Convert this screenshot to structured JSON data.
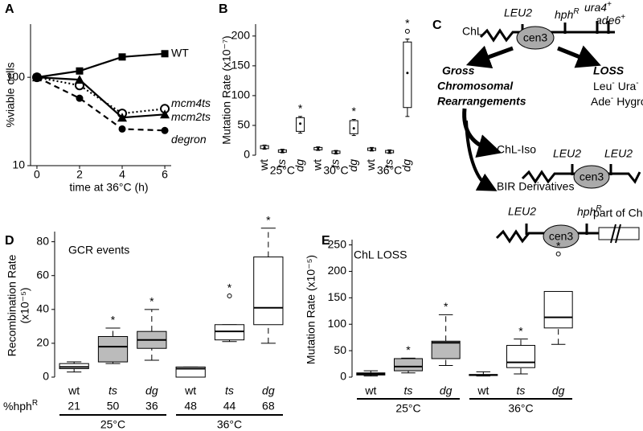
{
  "chart_data": [
    {
      "panel": "A",
      "type": "line",
      "xlabel": "time at 36°C (h)",
      "ylabel": "%viable cells",
      "x": [
        0,
        2,
        4,
        6
      ],
      "xlim": [
        -0.3,
        6.3
      ],
      "xticks": [
        0,
        2,
        4,
        6
      ],
      "ylim": [
        10,
        400
      ],
      "yticks": [
        10,
        100
      ],
      "log_y": true,
      "series": [
        {
          "name": "WT",
          "color": "#000000",
          "values": [
            100,
            118,
            170,
            185
          ],
          "marker": "square",
          "dash": "solid",
          "italic": false
        },
        {
          "name": "mcm4ts",
          "color": "#000000",
          "values": [
            100,
            81,
            39,
            44
          ],
          "marker": "open-circle",
          "dash": "dotted",
          "italic": true
        },
        {
          "name": "mcm2ts",
          "color": "#000000",
          "values": [
            100,
            94,
            35,
            38
          ],
          "marker": "triangle",
          "dash": "solid",
          "italic": true
        },
        {
          "name": "degron",
          "color": "#000000",
          "values": [
            100,
            58,
            26,
            25
          ],
          "marker": "circle",
          "dash": "dashed",
          "italic": true
        }
      ]
    },
    {
      "panel": "B",
      "type": "box",
      "ylabel": "Mutation Rate (x10⁻⁷)",
      "categories": [
        "wt",
        "ts",
        "dg",
        "wt",
        "ts",
        "dg",
        "wt",
        "ts",
        "dg"
      ],
      "category_italic": [
        false,
        true,
        true,
        false,
        true,
        true,
        false,
        true,
        true
      ],
      "groups": [
        "25°C",
        "30°C",
        "36°C"
      ],
      "ylim": [
        0,
        220
      ],
      "yticks": [
        0,
        50,
        100,
        150,
        200
      ],
      "min": [
        10,
        4,
        37,
        8,
        2,
        33,
        7,
        3,
        65
      ],
      "q1": [
        11,
        5,
        40,
        9,
        3,
        36,
        8,
        4,
        80
      ],
      "median": [
        13,
        7,
        53,
        11,
        5,
        45,
        10,
        6,
        138
      ],
      "q3": [
        16,
        9,
        63,
        13,
        7,
        58,
        12,
        8,
        190
      ],
      "max": [
        17,
        10,
        65,
        14,
        8,
        60,
        13,
        9,
        195
      ],
      "outliers": [
        [],
        [],
        [],
        [],
        [],
        [],
        [],
        [],
        [
          208
        ]
      ],
      "significant": [
        false,
        false,
        true,
        false,
        false,
        true,
        false,
        false,
        true
      ],
      "sig_label": "*",
      "box_colors": [
        "#ffffff",
        "#ffffff",
        "#ffffff",
        "#ffffff",
        "#ffffff",
        "#ffffff",
        "#ffffff",
        "#ffffff",
        "#ffffff"
      ],
      "median_style": "dot",
      "whisker_style": "solid",
      "group_lines": false
    },
    {
      "panel": "D",
      "type": "box",
      "title": "GCR events",
      "ylabel": [
        "Recombination Rate",
        "(x10⁻⁵)"
      ],
      "categories": [
        "wt",
        "ts",
        "dg",
        "wt",
        "ts",
        "dg"
      ],
      "category_italic": [
        false,
        true,
        true,
        false,
        true,
        true
      ],
      "groups": [
        "25°C",
        "36°C"
      ],
      "row_label": {
        "text": "%hph",
        "sup": "R"
      },
      "row_values": [
        21,
        50,
        36,
        48,
        44,
        68
      ],
      "ylim": [
        0,
        86
      ],
      "yticks": [
        0,
        20,
        40,
        60,
        80
      ],
      "min": [
        3,
        8,
        10,
        0,
        21,
        20
      ],
      "q1": [
        5,
        9,
        17,
        0,
        22,
        31
      ],
      "median": [
        6,
        18,
        22,
        5,
        27,
        41
      ],
      "q3": [
        8,
        24,
        27,
        6,
        31,
        71
      ],
      "max": [
        9,
        29,
        40,
        6,
        31,
        88
      ],
      "outliers": [
        [],
        [],
        [],
        [],
        [
          48
        ],
        []
      ],
      "significant": [
        false,
        true,
        true,
        false,
        true,
        true
      ],
      "sig_label": "*",
      "box_colors": [
        "#ffffff",
        "#bbbbbb",
        "#bbbbbb",
        "#ffffff",
        "#ffffff",
        "#ffffff"
      ],
      "median_style": "line",
      "whisker_style": "dashed",
      "group_lines": true
    },
    {
      "panel": "E",
      "type": "box",
      "title": "ChL LOSS",
      "ylabel": "Mutation Rate (x10⁻⁵)",
      "categories": [
        "wt",
        "ts",
        "dg",
        "wt",
        "ts",
        "dg"
      ],
      "category_italic": [
        false,
        true,
        true,
        false,
        true,
        true
      ],
      "groups": [
        "25°C",
        "36°C"
      ],
      "ylim": [
        0,
        260
      ],
      "yticks": [
        0,
        50,
        100,
        150,
        200,
        250
      ],
      "min": [
        2,
        8,
        22,
        2,
        6,
        62
      ],
      "q1": [
        4,
        12,
        35,
        3,
        18,
        93
      ],
      "median": [
        6,
        20,
        65,
        4,
        28,
        113
      ],
      "q3": [
        8,
        35,
        68,
        5,
        60,
        162
      ],
      "max": [
        12,
        36,
        118,
        10,
        72,
        162
      ],
      "outliers": [
        [],
        [],
        [],
        [],
        [],
        [
          233
        ]
      ],
      "significant": [
        false,
        true,
        true,
        false,
        true,
        true
      ],
      "sig_label": "*",
      "box_colors": [
        "#ffffff",
        "#bbbbbb",
        "#bbbbbb",
        "#ffffff",
        "#ffffff",
        "#ffffff"
      ],
      "median_style": "line",
      "whisker_style": "dashed",
      "group_lines": true
    }
  ],
  "diagram": {
    "panel": "C",
    "chl": "ChL",
    "leu2_top": "LEU2",
    "hph_top": {
      "text": "hph",
      "sup": "R"
    },
    "ura4": {
      "text": "ura4",
      "sup": "+"
    },
    "ade6": {
      "text": "ade6",
      "sup": "+"
    },
    "cen3_top": "cen3",
    "gcr": [
      "Gross",
      "Chromosomal",
      "Rearrangements"
    ],
    "loss": "LOSS",
    "loss_line1": [
      {
        "text": "Leu",
        "sup": "-"
      },
      {
        "text": "Ura",
        "sup": "-"
      }
    ],
    "loss_line2": [
      {
        "text": "Ade",
        "sup": "-"
      },
      {
        "text": "Hygro",
        "sup": "S"
      }
    ],
    "chl_iso": "ChL-Iso",
    "iso_leu2_left": "LEU2",
    "iso_cen3": "cen3",
    "iso_leu2_right": "LEU2",
    "bir": "BIR Derivatives",
    "bir_leu2": "LEU2",
    "bir_cen3": "cen3",
    "bir_hph": {
      "text": "hph",
      "sup": "R"
    },
    "bir_part": "part of ChIII"
  }
}
